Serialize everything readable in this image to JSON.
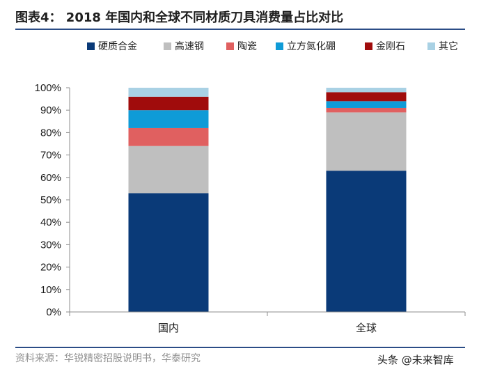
{
  "title": "图表4： 2018 年国内和全球不同材质刀具消费量占比对比",
  "source": "资料来源：华锐精密招股说明书，华泰研究",
  "watermark": "头条 @未来智库",
  "chart_data": {
    "type": "bar",
    "stacked": true,
    "categories": [
      "国内",
      "全球"
    ],
    "series": [
      {
        "name": "硬质合金",
        "color": "#0a3a78",
        "values": [
          53,
          63
        ]
      },
      {
        "name": "高速钢",
        "color": "#bfbfbf",
        "values": [
          21,
          26
        ]
      },
      {
        "name": "陶瓷",
        "color": "#e06060",
        "values": [
          8,
          2
        ]
      },
      {
        "name": "立方氮化硼",
        "color": "#0f9bd7",
        "values": [
          8,
          3
        ]
      },
      {
        "name": "金刚石",
        "color": "#a00c0c",
        "values": [
          6,
          4
        ]
      },
      {
        "name": "其它",
        "color": "#a9d1e4",
        "values": [
          4,
          2
        ]
      }
    ],
    "yticks": [
      "0%",
      "10%",
      "20%",
      "30%",
      "40%",
      "50%",
      "60%",
      "70%",
      "80%",
      "90%",
      "100%"
    ],
    "ylim": [
      0,
      100
    ],
    "legend_position": "top"
  }
}
